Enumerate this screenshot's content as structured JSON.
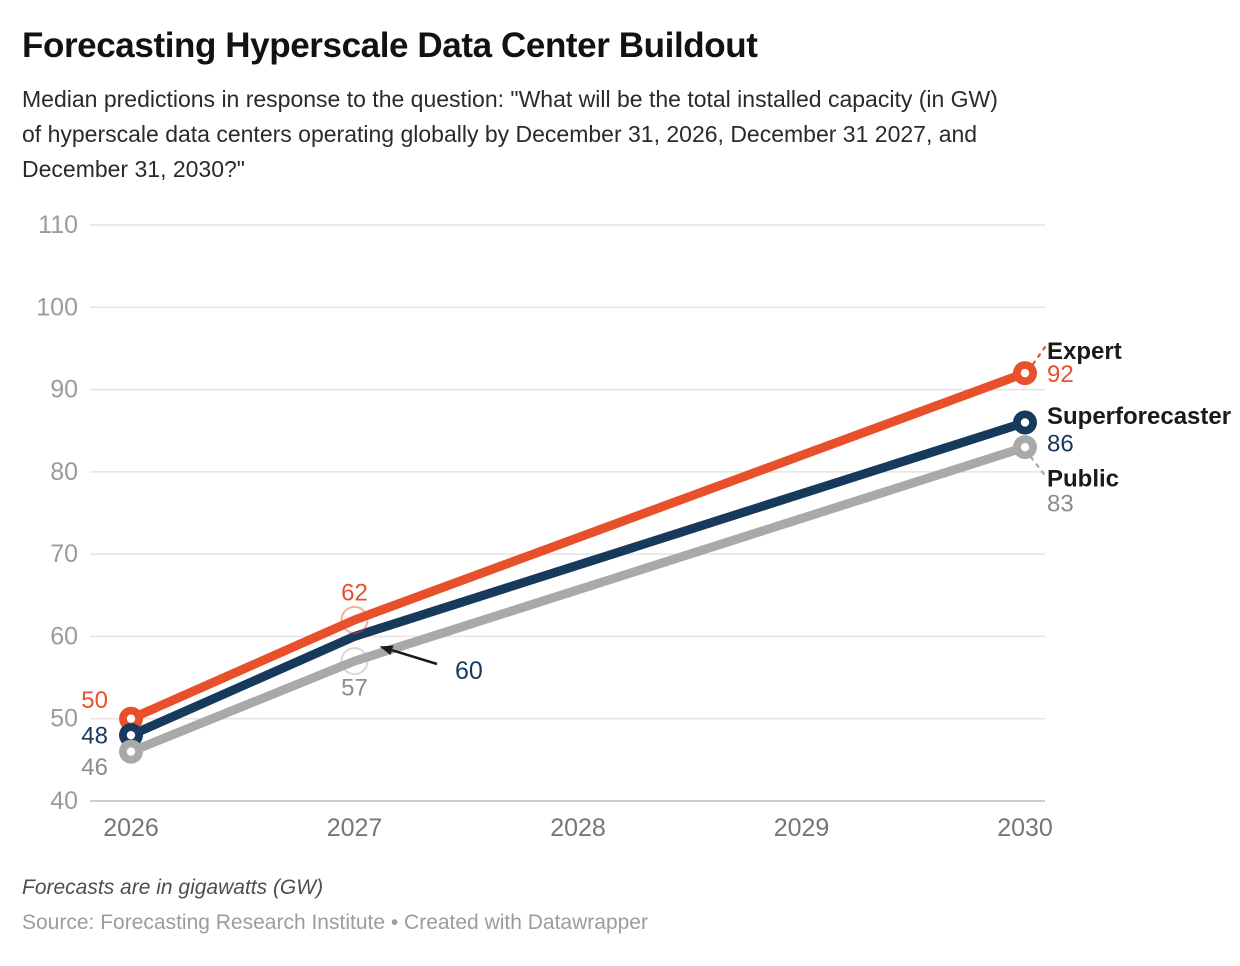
{
  "header": {
    "title": "Forecasting Hyperscale Data Center Buildout",
    "subtitle_lines": [
      "Median predictions in response to the question: \"What will be the total installed capacity (in GW)",
      "of hyperscale data centers operating globally by December 31, 2026, December 31 2027, and",
      "December 31, 2030?\""
    ]
  },
  "footer": {
    "note": "Forecasts are in gigawatts (GW)",
    "source": "Source: Forecasting Research Institute • Created with Datawrapper"
  },
  "chart_data": {
    "type": "line",
    "x": [
      2026,
      2027,
      2030
    ],
    "x_axis_ticks": [
      "2026",
      "2027",
      "2028",
      "2029",
      "2030"
    ],
    "x_range": [
      2026,
      2030
    ],
    "y_ticks": [
      "40",
      "50",
      "60",
      "70",
      "80",
      "90",
      "100",
      "110"
    ],
    "ylim": [
      40,
      110
    ],
    "grid": true,
    "unit": "GW",
    "legend_position": "labels-at-line-ends",
    "series": [
      {
        "name": "Expert",
        "color": "#E8502B",
        "values": [
          50,
          62,
          92
        ]
      },
      {
        "name": "Superforecaster",
        "color": "#17395C",
        "values": [
          48,
          60,
          86
        ]
      },
      {
        "name": "Public",
        "color": "#A9A9A9",
        "value_label_color": "#8C8C8C",
        "values": [
          46,
          57,
          83
        ]
      }
    ],
    "annotation": {
      "series": "Superforecaster",
      "x": 2027,
      "value": 60,
      "style": "arrow-callout"
    }
  },
  "colors": {
    "grid": "#E4E4E4",
    "axis_line": "#CDCDCD",
    "y_tick_label": "#9B9B9B",
    "x_tick_label": "#767676",
    "series_name": "#1A1A1A",
    "annotation_arrow": "#1A1A1A"
  }
}
